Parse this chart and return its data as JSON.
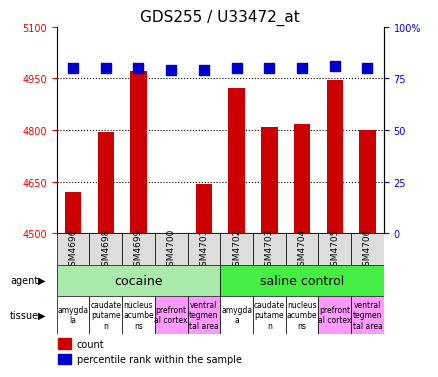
{
  "title": "GDS255 / U33472_at",
  "samples": [
    "GSM4696",
    "GSM4698",
    "GSM4699",
    "GSM4700",
    "GSM4701",
    "GSM4702",
    "GSM4703",
    "GSM4704",
    "GSM4705",
    "GSM4706"
  ],
  "counts": [
    4620,
    4793,
    4972,
    4500,
    4642,
    4922,
    4808,
    4818,
    4945,
    4800
  ],
  "percentiles": [
    80,
    80,
    80,
    79,
    79,
    80,
    80,
    80,
    81,
    80
  ],
  "ylim_left": [
    4500,
    5100
  ],
  "ylim_right": [
    0,
    100
  ],
  "yticks_left": [
    4500,
    4650,
    4800,
    4950,
    5100
  ],
  "yticks_right": [
    0,
    25,
    50,
    75,
    100
  ],
  "bar_color": "#cc0000",
  "dot_color": "#0000cc",
  "grid_color": "#000000",
  "agent_groups": [
    {
      "label": "cocaine",
      "start": 0,
      "end": 5,
      "color": "#aaeaaa"
    },
    {
      "label": "saline control",
      "start": 5,
      "end": 10,
      "color": "#44ee44"
    }
  ],
  "tissues": [
    {
      "label": "amygda\nla",
      "color": "#ffffff"
    },
    {
      "label": "caudate\nputame\nn",
      "color": "#ffffff"
    },
    {
      "label": "nucleus\nacumbe\nns",
      "color": "#ffffff"
    },
    {
      "label": "prefront\nal cortex",
      "color": "#ff99ff"
    },
    {
      "label": "ventral\ntegmen\ntal area",
      "color": "#ff99ff"
    },
    {
      "label": "amygda\na",
      "color": "#ffffff"
    },
    {
      "label": "caudate\nputame\nn",
      "color": "#ffffff"
    },
    {
      "label": "nucleus\nacumbe\nns",
      "color": "#ffffff"
    },
    {
      "label": "prefront\nal cortex",
      "color": "#ff99ff"
    },
    {
      "label": "ventral\ntegmen\ntal area",
      "color": "#ff99ff"
    }
  ],
  "bar_width": 0.5,
  "dot_size": 50,
  "background_color": "#ffffff",
  "label_fontsize": 6.5,
  "tissue_fontsize": 5.5,
  "agent_fontsize": 9,
  "title_fontsize": 11,
  "tick_label_fontsize": 7,
  "legend_fontsize": 7
}
